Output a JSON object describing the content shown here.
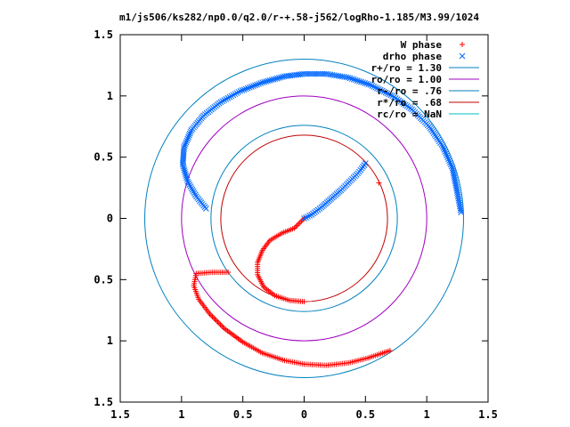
{
  "chart_data": {
    "type": "scatter",
    "title": "m1/js506/ks282/np0.0/q2.0/r-+.58-j562/logRho-1.185/M3.99/1024",
    "xlabel": "",
    "ylabel": "",
    "xlim": [
      -1.5,
      1.5
    ],
    "ylim": [
      -1.5,
      1.5
    ],
    "grid": false,
    "legend_position": "top-right",
    "x_ticks": [
      -1.5,
      -1,
      -0.5,
      0,
      0.5,
      1,
      1.5
    ],
    "y_ticks": [
      -1.5,
      -1,
      -0.5,
      0,
      0.5,
      1,
      1.5
    ],
    "x_tick_labels": [
      "1.5",
      "1",
      "0.5",
      "0",
      "0.5",
      "1",
      "1.5"
    ],
    "y_tick_labels": [
      "1.5",
      "1",
      "0.5",
      "0",
      "0.5",
      "1",
      "1.5"
    ],
    "series": [
      {
        "name": "W phase",
        "marker": "+",
        "color": "#ff0000",
        "points": [
          [
            0.0,
            0.0
          ],
          [
            -0.08,
            -0.08
          ],
          [
            -0.18,
            -0.12
          ],
          [
            -0.28,
            -0.18
          ],
          [
            -0.34,
            -0.26
          ],
          [
            -0.38,
            -0.36
          ],
          [
            -0.38,
            -0.46
          ],
          [
            -0.33,
            -0.56
          ],
          [
            -0.24,
            -0.63
          ],
          [
            -0.12,
            -0.67
          ],
          [
            0.0,
            -0.68
          ],
          [
            -0.62,
            -0.44
          ],
          [
            -0.75,
            -0.44
          ],
          [
            -0.88,
            -0.45
          ],
          [
            -0.9,
            -0.55
          ],
          [
            -0.86,
            -0.66
          ],
          [
            -0.77,
            -0.78
          ],
          [
            -0.65,
            -0.9
          ],
          [
            -0.5,
            -1.01
          ],
          [
            -0.34,
            -1.1
          ],
          [
            -0.16,
            -1.16
          ],
          [
            0.0,
            -1.19
          ],
          [
            0.18,
            -1.2
          ],
          [
            0.36,
            -1.18
          ],
          [
            0.52,
            -1.14
          ],
          [
            0.7,
            -1.08
          ],
          [
            0.61,
            0.29
          ]
        ]
      },
      {
        "name": "drho phase",
        "marker": "x",
        "color": "#0066ff",
        "points": [
          [
            0.0,
            0.0
          ],
          [
            0.06,
            0.03
          ],
          [
            0.14,
            0.09
          ],
          [
            0.22,
            0.16
          ],
          [
            0.3,
            0.23
          ],
          [
            0.38,
            0.31
          ],
          [
            0.45,
            0.38
          ],
          [
            0.5,
            0.45
          ],
          [
            -0.8,
            0.08
          ],
          [
            -0.88,
            0.18
          ],
          [
            -0.95,
            0.3
          ],
          [
            -0.99,
            0.44
          ],
          [
            -0.98,
            0.58
          ],
          [
            -0.92,
            0.72
          ],
          [
            -0.82,
            0.84
          ],
          [
            -0.68,
            0.95
          ],
          [
            -0.52,
            1.04
          ],
          [
            -0.34,
            1.11
          ],
          [
            -0.16,
            1.16
          ],
          [
            0.0,
            1.18
          ],
          [
            0.18,
            1.18
          ],
          [
            0.36,
            1.15
          ],
          [
            0.54,
            1.09
          ],
          [
            0.72,
            1.0
          ],
          [
            0.88,
            0.89
          ],
          [
            1.02,
            0.75
          ],
          [
            1.13,
            0.59
          ],
          [
            1.21,
            0.41
          ],
          [
            1.25,
            0.21
          ],
          [
            1.28,
            0.05
          ]
        ]
      },
      {
        "name": "r+/ro = 1.30",
        "type": "circle",
        "radius": 1.3,
        "color": "#0080c0"
      },
      {
        "name": "ro/ro = 1.00",
        "type": "circle",
        "radius": 1.0,
        "color": "#a000c0"
      },
      {
        "name": "r-/ro = .76",
        "type": "circle",
        "radius": 0.76,
        "color": "#0080c0"
      },
      {
        "name": "r*/ro = .68",
        "type": "circle",
        "radius": 0.68,
        "color": "#c00000"
      },
      {
        "name": "rc/ro = NaN",
        "type": "circle",
        "radius": null,
        "color": "#00c0c0"
      }
    ]
  }
}
